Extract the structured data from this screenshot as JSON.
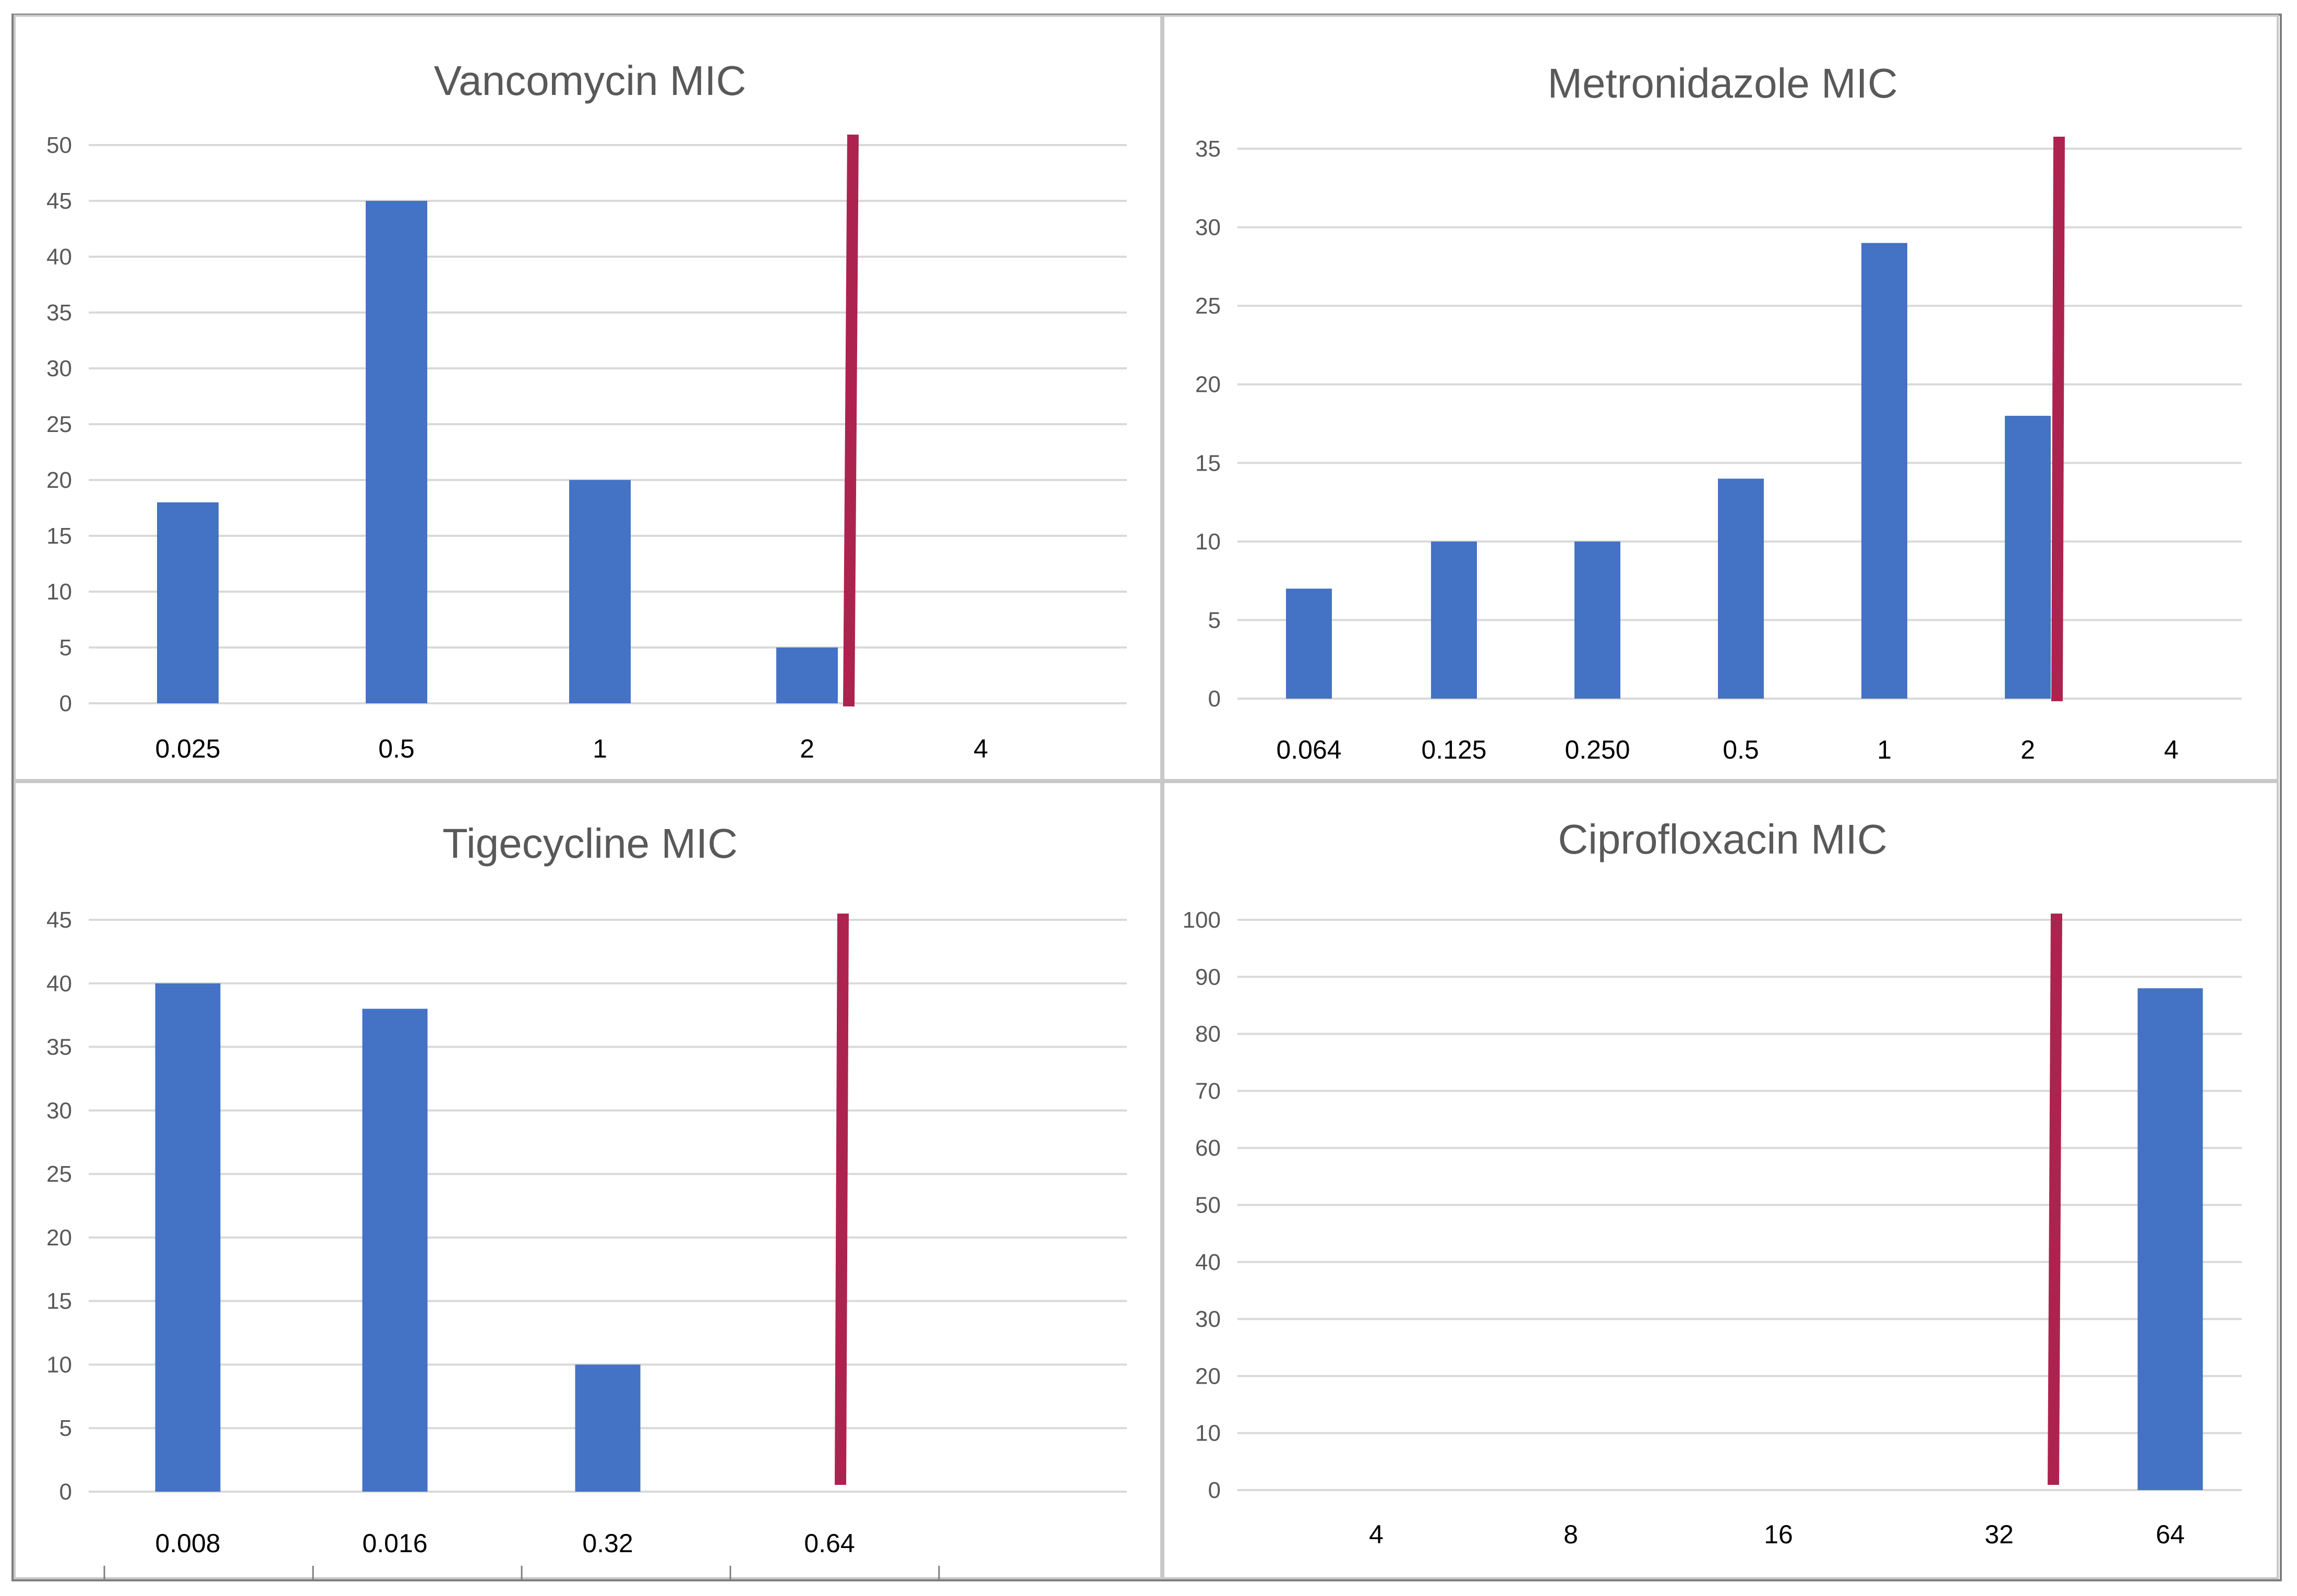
{
  "chart_data": [
    {
      "type": "bar",
      "title": "Vancomycin MIC",
      "categories": [
        "0.025",
        "0.5",
        "1",
        "2",
        "4"
      ],
      "values": [
        18,
        45,
        20,
        5,
        0
      ],
      "ylim": [
        0,
        50
      ],
      "yticks": [
        0,
        5,
        10,
        15,
        20,
        25,
        30,
        35,
        40,
        45,
        50
      ],
      "reference_line": {
        "between": [
          "2",
          "4"
        ],
        "color": "#ad2350"
      },
      "bar_color": "#4472c4",
      "xlabel": "",
      "ylabel": ""
    },
    {
      "type": "bar",
      "title": "Metronidazole MIC",
      "categories": [
        "0.064",
        "0.125",
        "0.250",
        "0.5",
        "1",
        "2",
        "4"
      ],
      "values": [
        7,
        10,
        10,
        14,
        29,
        18,
        0
      ],
      "ylim": [
        0,
        35
      ],
      "yticks": [
        0,
        5,
        10,
        15,
        20,
        25,
        30,
        35
      ],
      "reference_line": {
        "between": [
          "2",
          "4"
        ],
        "color": "#ad2350"
      },
      "bar_color": "#4472c4",
      "xlabel": "",
      "ylabel": ""
    },
    {
      "type": "bar",
      "title": "Tigecycline MIC",
      "categories": [
        "0.008",
        "0.016",
        "0.32",
        "0.64"
      ],
      "values": [
        40,
        38,
        10,
        0
      ],
      "ylim": [
        0,
        45
      ],
      "yticks": [
        0,
        5,
        10,
        15,
        20,
        25,
        30,
        35,
        40,
        45
      ],
      "reference_line": {
        "at": "0.64",
        "color": "#ad2350"
      },
      "bar_color": "#4472c4",
      "xlabel": "",
      "ylabel": ""
    },
    {
      "type": "bar",
      "title": "Ciprofloxacin MIC",
      "categories": [
        "4",
        "8",
        "16",
        "32",
        "64"
      ],
      "values": [
        0,
        0,
        0,
        0,
        88
      ],
      "ylim": [
        0,
        100
      ],
      "yticks": [
        0,
        10,
        20,
        30,
        40,
        50,
        60,
        70,
        80,
        90,
        100
      ],
      "reference_line": {
        "between": [
          "32",
          "64"
        ],
        "color": "#ad2350"
      },
      "bar_color": "#4472c4",
      "xlabel": "",
      "ylabel": ""
    }
  ]
}
